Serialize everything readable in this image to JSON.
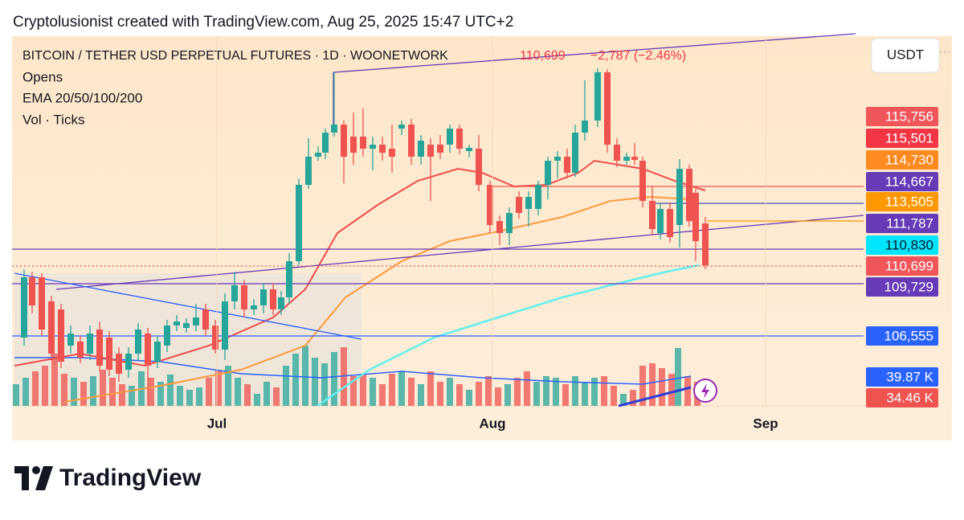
{
  "header": {
    "caption": "Cryptolusionist created with TradingView.com, Aug 25, 2025 15:47 UTC+2"
  },
  "legend": {
    "symbol": "BITCOIN / TETHER USD PERPETUAL FUTURES · 1D · WOONETWORK",
    "last": "110,699",
    "change": "−2,787 (−2.46%)",
    "lines": [
      "Opens",
      "EMA 20/50/100/200",
      "Vol · Ticks"
    ]
  },
  "currency": "USDT",
  "price_labels": [
    {
      "text": "115,756",
      "color": "#f0555a"
    },
    {
      "text": "115,501",
      "color": "#f23645"
    },
    {
      "text": "114,730",
      "color": "#ff8a1f"
    },
    {
      "text": "114,667",
      "color": "#673ab7"
    },
    {
      "text": "113,505",
      "color": "#ff9800"
    },
    {
      "text": "111,787",
      "color": "#673ab7"
    },
    {
      "text": "110,830",
      "color": "#00e5ff"
    },
    {
      "text": "110,699",
      "color": "#f0555a"
    },
    {
      "text": "109,729",
      "color": "#673ab7"
    },
    {
      "text": "106,555",
      "color": "#2962ff"
    },
    {
      "text": "39.87 K",
      "color": "#2962ff"
    },
    {
      "text": "34.46 K",
      "color": "#ef5350"
    }
  ],
  "time_axis": [
    "Jul",
    "Aug",
    "Sep"
  ],
  "footer": {
    "logo": "TradingView"
  }
}
